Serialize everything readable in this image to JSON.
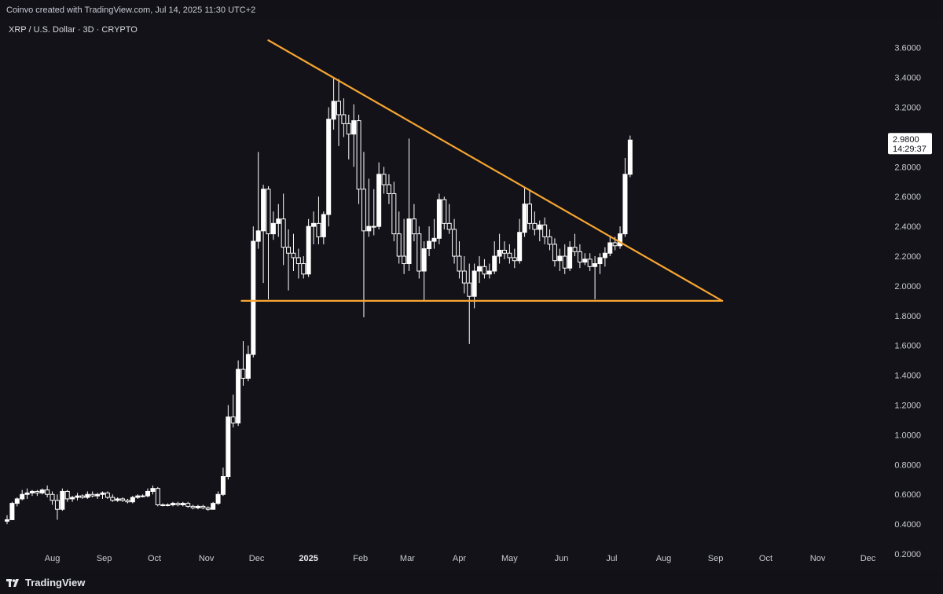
{
  "header": {
    "credit": "Coinvo created with TradingView.com, Jul 14, 2025 11:30 UTC+2"
  },
  "chart_panel": {
    "symbol_title": "XRP / U.S. Dollar · 3D · CRYPTO"
  },
  "footer": {
    "brand": "TradingView",
    "brand_icon": "tradingview-logo-icon"
  },
  "colors": {
    "background": "#131218",
    "candle_up": "#ffffff",
    "candle_down": "#ffffff",
    "trendline": "#f7a531",
    "last_price_box": "#ffffff",
    "text": "#c8cad3"
  },
  "chart_data": {
    "type": "candlestick",
    "title": "XRP / U.S. Dollar · 3D · CRYPTO",
    "timeframe": "3D",
    "y_axis": {
      "position": "right",
      "ticks": [
        "0.2000",
        "0.4000",
        "0.6000",
        "0.8000",
        "1.0000",
        "1.2000",
        "1.4000",
        "1.6000",
        "1.8000",
        "2.0000",
        "2.2000",
        "2.4000",
        "2.6000",
        "2.8000",
        "3.0000",
        "3.2000",
        "3.4000",
        "3.6000"
      ],
      "range": [
        0.1,
        3.72
      ]
    },
    "x_axis": {
      "ticks": [
        {
          "label": "Aug",
          "date": "2024-08-01"
        },
        {
          "label": "Sep",
          "date": "2024-09-01"
        },
        {
          "label": "Oct",
          "date": "2024-10-01"
        },
        {
          "label": "Nov",
          "date": "2024-11-01"
        },
        {
          "label": "Dec",
          "date": "2024-12-01"
        },
        {
          "label": "2025",
          "date": "2025-01-01",
          "bold": true
        },
        {
          "label": "Feb",
          "date": "2025-02-01"
        },
        {
          "label": "Mar",
          "date": "2025-03-01"
        },
        {
          "label": "Apr",
          "date": "2025-04-01"
        },
        {
          "label": "May",
          "date": "2025-05-01"
        },
        {
          "label": "Jun",
          "date": "2025-06-01"
        },
        {
          "label": "Jul",
          "date": "2025-07-01"
        },
        {
          "label": "Aug",
          "date": "2025-08-01"
        },
        {
          "label": "Sep",
          "date": "2025-09-01"
        },
        {
          "label": "Oct",
          "date": "2025-10-01"
        },
        {
          "label": "Nov",
          "date": "2025-11-01"
        },
        {
          "label": "Dec",
          "date": "2025-12-01"
        }
      ],
      "range": [
        "2024-07-05",
        "2025-12-20"
      ]
    },
    "last_price": {
      "value": "2.9800",
      "countdown": "14:29:37"
    },
    "trendlines": [
      {
        "name": "descending-resistance",
        "from": {
          "date": "2024-12-08",
          "price": 3.65
        },
        "to": {
          "date": "2025-09-05",
          "price": 1.9
        }
      },
      {
        "name": "horizontal-support",
        "from": {
          "date": "2024-11-22",
          "price": 1.9
        },
        "to": {
          "date": "2025-09-05",
          "price": 1.9
        }
      }
    ],
    "grid": false,
    "candles": [
      {
        "date": "2024-07-05",
        "o": 0.42,
        "h": 0.46,
        "l": 0.4,
        "c": 0.43
      },
      {
        "date": "2024-07-08",
        "o": 0.43,
        "h": 0.55,
        "l": 0.43,
        "c": 0.54
      },
      {
        "date": "2024-07-11",
        "o": 0.54,
        "h": 0.58,
        "l": 0.52,
        "c": 0.57
      },
      {
        "date": "2024-07-14",
        "o": 0.57,
        "h": 0.63,
        "l": 0.56,
        "c": 0.6
      },
      {
        "date": "2024-07-17",
        "o": 0.6,
        "h": 0.64,
        "l": 0.57,
        "c": 0.61
      },
      {
        "date": "2024-07-20",
        "o": 0.61,
        "h": 0.63,
        "l": 0.59,
        "c": 0.62
      },
      {
        "date": "2024-07-23",
        "o": 0.62,
        "h": 0.63,
        "l": 0.59,
        "c": 0.61
      },
      {
        "date": "2024-07-26",
        "o": 0.61,
        "h": 0.64,
        "l": 0.6,
        "c": 0.63
      },
      {
        "date": "2024-07-29",
        "o": 0.63,
        "h": 0.66,
        "l": 0.58,
        "c": 0.6
      },
      {
        "date": "2024-08-01",
        "o": 0.6,
        "h": 0.62,
        "l": 0.53,
        "c": 0.56
      },
      {
        "date": "2024-08-04",
        "o": 0.56,
        "h": 0.6,
        "l": 0.43,
        "c": 0.5
      },
      {
        "date": "2024-08-07",
        "o": 0.5,
        "h": 0.64,
        "l": 0.49,
        "c": 0.62
      },
      {
        "date": "2024-08-10",
        "o": 0.62,
        "h": 0.63,
        "l": 0.55,
        "c": 0.57
      },
      {
        "date": "2024-08-13",
        "o": 0.57,
        "h": 0.59,
        "l": 0.55,
        "c": 0.58
      },
      {
        "date": "2024-08-16",
        "o": 0.58,
        "h": 0.61,
        "l": 0.56,
        "c": 0.59
      },
      {
        "date": "2024-08-19",
        "o": 0.59,
        "h": 0.6,
        "l": 0.57,
        "c": 0.58
      },
      {
        "date": "2024-08-22",
        "o": 0.58,
        "h": 0.62,
        "l": 0.57,
        "c": 0.6
      },
      {
        "date": "2024-08-25",
        "o": 0.6,
        "h": 0.62,
        "l": 0.58,
        "c": 0.59
      },
      {
        "date": "2024-08-28",
        "o": 0.59,
        "h": 0.61,
        "l": 0.57,
        "c": 0.6
      },
      {
        "date": "2024-08-31",
        "o": 0.6,
        "h": 0.62,
        "l": 0.57,
        "c": 0.61
      },
      {
        "date": "2024-09-03",
        "o": 0.61,
        "h": 0.62,
        "l": 0.57,
        "c": 0.58
      },
      {
        "date": "2024-09-06",
        "o": 0.58,
        "h": 0.6,
        "l": 0.55,
        "c": 0.56
      },
      {
        "date": "2024-09-09",
        "o": 0.56,
        "h": 0.58,
        "l": 0.55,
        "c": 0.57
      },
      {
        "date": "2024-09-12",
        "o": 0.57,
        "h": 0.58,
        "l": 0.55,
        "c": 0.56
      },
      {
        "date": "2024-09-15",
        "o": 0.56,
        "h": 0.57,
        "l": 0.54,
        "c": 0.55
      },
      {
        "date": "2024-09-18",
        "o": 0.55,
        "h": 0.59,
        "l": 0.54,
        "c": 0.58
      },
      {
        "date": "2024-09-21",
        "o": 0.58,
        "h": 0.6,
        "l": 0.57,
        "c": 0.59
      },
      {
        "date": "2024-09-24",
        "o": 0.59,
        "h": 0.6,
        "l": 0.58,
        "c": 0.59
      },
      {
        "date": "2024-09-27",
        "o": 0.59,
        "h": 0.64,
        "l": 0.58,
        "c": 0.62
      },
      {
        "date": "2024-09-30",
        "o": 0.62,
        "h": 0.66,
        "l": 0.6,
        "c": 0.64
      },
      {
        "date": "2024-10-03",
        "o": 0.64,
        "h": 0.65,
        "l": 0.52,
        "c": 0.53
      },
      {
        "date": "2024-10-06",
        "o": 0.53,
        "h": 0.54,
        "l": 0.52,
        "c": 0.53
      },
      {
        "date": "2024-10-09",
        "o": 0.53,
        "h": 0.54,
        "l": 0.52,
        "c": 0.53
      },
      {
        "date": "2024-10-12",
        "o": 0.53,
        "h": 0.55,
        "l": 0.52,
        "c": 0.54
      },
      {
        "date": "2024-10-15",
        "o": 0.54,
        "h": 0.55,
        "l": 0.52,
        "c": 0.53
      },
      {
        "date": "2024-10-18",
        "o": 0.53,
        "h": 0.55,
        "l": 0.52,
        "c": 0.54
      },
      {
        "date": "2024-10-21",
        "o": 0.54,
        "h": 0.55,
        "l": 0.51,
        "c": 0.52
      },
      {
        "date": "2024-10-24",
        "o": 0.52,
        "h": 0.53,
        "l": 0.5,
        "c": 0.51
      },
      {
        "date": "2024-10-27",
        "o": 0.51,
        "h": 0.53,
        "l": 0.5,
        "c": 0.52
      },
      {
        "date": "2024-10-30",
        "o": 0.52,
        "h": 0.53,
        "l": 0.5,
        "c": 0.51
      },
      {
        "date": "2024-11-02",
        "o": 0.51,
        "h": 0.52,
        "l": 0.49,
        "c": 0.5
      },
      {
        "date": "2024-11-05",
        "o": 0.5,
        "h": 0.55,
        "l": 0.5,
        "c": 0.54
      },
      {
        "date": "2024-11-08",
        "o": 0.54,
        "h": 0.62,
        "l": 0.53,
        "c": 0.6
      },
      {
        "date": "2024-11-11",
        "o": 0.6,
        "h": 0.78,
        "l": 0.59,
        "c": 0.72
      },
      {
        "date": "2024-11-14",
        "o": 0.72,
        "h": 1.2,
        "l": 0.7,
        "c": 1.12
      },
      {
        "date": "2024-11-17",
        "o": 1.12,
        "h": 1.27,
        "l": 1.05,
        "c": 1.08
      },
      {
        "date": "2024-11-20",
        "o": 1.08,
        "h": 1.5,
        "l": 1.06,
        "c": 1.44
      },
      {
        "date": "2024-11-23",
        "o": 1.44,
        "h": 1.63,
        "l": 1.33,
        "c": 1.38
      },
      {
        "date": "2024-11-26",
        "o": 1.38,
        "h": 1.6,
        "l": 1.36,
        "c": 1.54
      },
      {
        "date": "2024-11-29",
        "o": 1.54,
        "h": 2.4,
        "l": 1.52,
        "c": 2.3
      },
      {
        "date": "2024-12-02",
        "o": 2.3,
        "h": 2.9,
        "l": 2.25,
        "c": 2.37
      },
      {
        "date": "2024-12-05",
        "o": 2.37,
        "h": 2.68,
        "l": 2.02,
        "c": 2.65
      },
      {
        "date": "2024-12-08",
        "o": 2.65,
        "h": 2.67,
        "l": 1.91,
        "c": 2.35
      },
      {
        "date": "2024-12-11",
        "o": 2.35,
        "h": 2.5,
        "l": 2.31,
        "c": 2.42
      },
      {
        "date": "2024-12-14",
        "o": 2.42,
        "h": 2.55,
        "l": 2.33,
        "c": 2.45
      },
      {
        "date": "2024-12-17",
        "o": 2.45,
        "h": 2.62,
        "l": 2.14,
        "c": 2.26
      },
      {
        "date": "2024-12-20",
        "o": 2.26,
        "h": 2.38,
        "l": 1.97,
        "c": 2.22
      },
      {
        "date": "2024-12-23",
        "o": 2.22,
        "h": 2.35,
        "l": 2.1,
        "c": 2.19
      },
      {
        "date": "2024-12-26",
        "o": 2.19,
        "h": 2.25,
        "l": 2.05,
        "c": 2.15
      },
      {
        "date": "2024-12-29",
        "o": 2.15,
        "h": 2.2,
        "l": 2.05,
        "c": 2.08
      },
      {
        "date": "2025-01-01",
        "o": 2.08,
        "h": 2.45,
        "l": 2.06,
        "c": 2.4
      },
      {
        "date": "2025-01-04",
        "o": 2.4,
        "h": 2.5,
        "l": 2.28,
        "c": 2.42
      },
      {
        "date": "2025-01-07",
        "o": 2.42,
        "h": 2.6,
        "l": 2.28,
        "c": 2.33
      },
      {
        "date": "2025-01-10",
        "o": 2.33,
        "h": 2.5,
        "l": 2.28,
        "c": 2.48
      },
      {
        "date": "2025-01-13",
        "o": 2.48,
        "h": 3.2,
        "l": 2.4,
        "c": 3.12
      },
      {
        "date": "2025-01-16",
        "o": 3.12,
        "h": 3.4,
        "l": 3.05,
        "c": 3.24
      },
      {
        "date": "2025-01-19",
        "o": 3.24,
        "h": 3.39,
        "l": 2.94,
        "c": 3.15
      },
      {
        "date": "2025-01-22",
        "o": 3.15,
        "h": 3.26,
        "l": 3.0,
        "c": 3.09
      },
      {
        "date": "2025-01-25",
        "o": 3.09,
        "h": 3.15,
        "l": 2.85,
        "c": 3.02
      },
      {
        "date": "2025-01-28",
        "o": 3.02,
        "h": 3.22,
        "l": 2.8,
        "c": 3.11
      },
      {
        "date": "2025-01-31",
        "o": 3.11,
        "h": 3.15,
        "l": 2.55,
        "c": 2.65
      },
      {
        "date": "2025-02-03",
        "o": 2.65,
        "h": 2.9,
        "l": 1.79,
        "c": 2.37
      },
      {
        "date": "2025-02-06",
        "o": 2.37,
        "h": 2.72,
        "l": 2.33,
        "c": 2.4
      },
      {
        "date": "2025-02-09",
        "o": 2.4,
        "h": 2.65,
        "l": 2.34,
        "c": 2.4
      },
      {
        "date": "2025-02-12",
        "o": 2.4,
        "h": 2.83,
        "l": 2.38,
        "c": 2.75
      },
      {
        "date": "2025-02-15",
        "o": 2.75,
        "h": 2.8,
        "l": 2.62,
        "c": 2.68
      },
      {
        "date": "2025-02-18",
        "o": 2.68,
        "h": 2.75,
        "l": 2.55,
        "c": 2.62
      },
      {
        "date": "2025-02-21",
        "o": 2.62,
        "h": 2.7,
        "l": 2.3,
        "c": 2.35
      },
      {
        "date": "2025-02-24",
        "o": 2.35,
        "h": 2.5,
        "l": 2.15,
        "c": 2.2
      },
      {
        "date": "2025-02-27",
        "o": 2.2,
        "h": 2.45,
        "l": 2.08,
        "c": 2.15
      },
      {
        "date": "2025-03-02",
        "o": 2.15,
        "h": 2.99,
        "l": 2.1,
        "c": 2.45
      },
      {
        "date": "2025-03-05",
        "o": 2.45,
        "h": 2.55,
        "l": 2.3,
        "c": 2.35
      },
      {
        "date": "2025-03-08",
        "o": 2.35,
        "h": 2.4,
        "l": 2.05,
        "c": 2.1
      },
      {
        "date": "2025-03-11",
        "o": 2.1,
        "h": 2.3,
        "l": 1.9,
        "c": 2.25
      },
      {
        "date": "2025-03-14",
        "o": 2.25,
        "h": 2.4,
        "l": 2.2,
        "c": 2.3
      },
      {
        "date": "2025-03-17",
        "o": 2.3,
        "h": 2.45,
        "l": 2.25,
        "c": 2.32
      },
      {
        "date": "2025-03-20",
        "o": 2.32,
        "h": 2.62,
        "l": 2.28,
        "c": 2.58
      },
      {
        "date": "2025-03-23",
        "o": 2.58,
        "h": 2.6,
        "l": 2.38,
        "c": 2.42
      },
      {
        "date": "2025-03-26",
        "o": 2.42,
        "h": 2.55,
        "l": 2.35,
        "c": 2.38
      },
      {
        "date": "2025-03-29",
        "o": 2.38,
        "h": 2.45,
        "l": 2.15,
        "c": 2.2
      },
      {
        "date": "2025-04-01",
        "o": 2.2,
        "h": 2.3,
        "l": 2.05,
        "c": 2.1
      },
      {
        "date": "2025-04-04",
        "o": 2.1,
        "h": 2.2,
        "l": 1.95,
        "c": 2.02
      },
      {
        "date": "2025-04-07",
        "o": 2.02,
        "h": 2.15,
        "l": 1.61,
        "c": 1.93
      },
      {
        "date": "2025-04-10",
        "o": 1.93,
        "h": 2.15,
        "l": 1.85,
        "c": 2.1
      },
      {
        "date": "2025-04-13",
        "o": 2.1,
        "h": 2.2,
        "l": 2.02,
        "c": 2.13
      },
      {
        "date": "2025-04-16",
        "o": 2.13,
        "h": 2.18,
        "l": 2.05,
        "c": 2.08
      },
      {
        "date": "2025-04-19",
        "o": 2.08,
        "h": 2.15,
        "l": 2.05,
        "c": 2.1
      },
      {
        "date": "2025-04-22",
        "o": 2.1,
        "h": 2.3,
        "l": 2.08,
        "c": 2.2
      },
      {
        "date": "2025-04-25",
        "o": 2.2,
        "h": 2.35,
        "l": 2.15,
        "c": 2.24
      },
      {
        "date": "2025-04-28",
        "o": 2.24,
        "h": 2.3,
        "l": 2.18,
        "c": 2.22
      },
      {
        "date": "2025-05-01",
        "o": 2.22,
        "h": 2.28,
        "l": 2.15,
        "c": 2.19
      },
      {
        "date": "2025-05-04",
        "o": 2.19,
        "h": 2.25,
        "l": 2.12,
        "c": 2.17
      },
      {
        "date": "2025-05-07",
        "o": 2.17,
        "h": 2.45,
        "l": 2.15,
        "c": 2.36
      },
      {
        "date": "2025-05-10",
        "o": 2.36,
        "h": 2.66,
        "l": 2.33,
        "c": 2.55
      },
      {
        "date": "2025-05-13",
        "o": 2.55,
        "h": 2.65,
        "l": 2.38,
        "c": 2.42
      },
      {
        "date": "2025-05-16",
        "o": 2.42,
        "h": 2.5,
        "l": 2.34,
        "c": 2.38
      },
      {
        "date": "2025-05-19",
        "o": 2.38,
        "h": 2.44,
        "l": 2.3,
        "c": 2.41
      },
      {
        "date": "2025-05-22",
        "o": 2.41,
        "h": 2.46,
        "l": 2.28,
        "c": 2.33
      },
      {
        "date": "2025-05-25",
        "o": 2.33,
        "h": 2.38,
        "l": 2.24,
        "c": 2.28
      },
      {
        "date": "2025-05-28",
        "o": 2.28,
        "h": 2.32,
        "l": 2.13,
        "c": 2.17
      },
      {
        "date": "2025-05-31",
        "o": 2.17,
        "h": 2.25,
        "l": 2.1,
        "c": 2.2
      },
      {
        "date": "2025-06-03",
        "o": 2.2,
        "h": 2.28,
        "l": 2.08,
        "c": 2.12
      },
      {
        "date": "2025-06-06",
        "o": 2.12,
        "h": 2.3,
        "l": 2.1,
        "c": 2.26
      },
      {
        "date": "2025-06-09",
        "o": 2.26,
        "h": 2.35,
        "l": 2.2,
        "c": 2.23
      },
      {
        "date": "2025-06-12",
        "o": 2.23,
        "h": 2.28,
        "l": 2.12,
        "c": 2.16
      },
      {
        "date": "2025-06-15",
        "o": 2.16,
        "h": 2.22,
        "l": 2.14,
        "c": 2.18
      },
      {
        "date": "2025-06-18",
        "o": 2.18,
        "h": 2.22,
        "l": 2.1,
        "c": 2.13
      },
      {
        "date": "2025-06-21",
        "o": 2.13,
        "h": 2.2,
        "l": 1.91,
        "c": 2.15
      },
      {
        "date": "2025-06-24",
        "o": 2.15,
        "h": 2.22,
        "l": 2.08,
        "c": 2.19
      },
      {
        "date": "2025-06-27",
        "o": 2.19,
        "h": 2.26,
        "l": 2.13,
        "c": 2.22
      },
      {
        "date": "2025-06-30",
        "o": 2.22,
        "h": 2.34,
        "l": 2.2,
        "c": 2.29
      },
      {
        "date": "2025-07-03",
        "o": 2.29,
        "h": 2.33,
        "l": 2.24,
        "c": 2.27
      },
      {
        "date": "2025-07-06",
        "o": 2.27,
        "h": 2.4,
        "l": 2.25,
        "c": 2.35
      },
      {
        "date": "2025-07-09",
        "o": 2.35,
        "h": 2.86,
        "l": 2.33,
        "c": 2.75
      },
      {
        "date": "2025-07-12",
        "o": 2.75,
        "h": 3.01,
        "l": 2.73,
        "c": 2.98
      }
    ]
  }
}
